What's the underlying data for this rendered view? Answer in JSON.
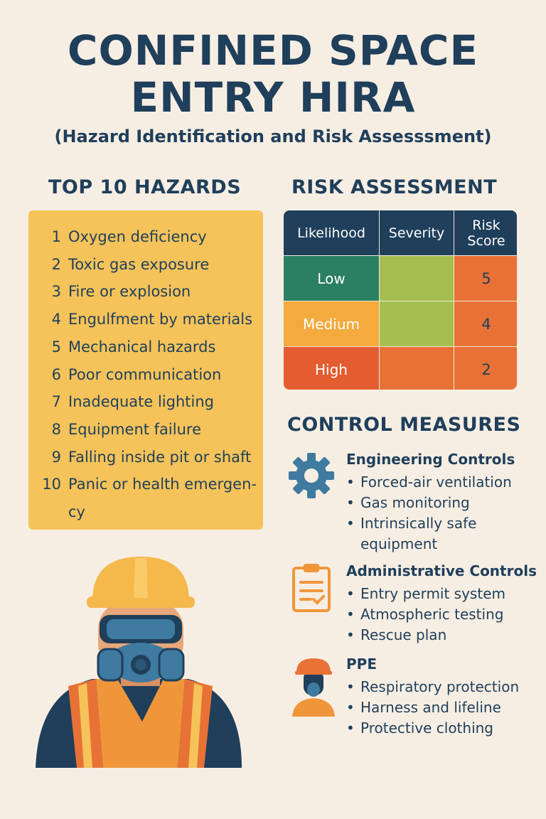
{
  "title_line1": "CONFINED SPACE",
  "title_line2": "ENTRY HIRA",
  "subtitle": "(Hazard Identification and Risk Assesssment)",
  "hazards": {
    "heading": "TOP 10 HAZARDS",
    "items": [
      {
        "n": "1",
        "t": "Oxygen deficiency"
      },
      {
        "n": "2",
        "t": "Toxic gas exposure"
      },
      {
        "n": "3",
        "t": "Fire or explosion"
      },
      {
        "n": "4",
        "t": "Engulfment by materials"
      },
      {
        "n": "5",
        "t": "Mechanical hazards"
      },
      {
        "n": "6",
        "t": "Poor communication"
      },
      {
        "n": "7",
        "t": "Inadequate lighting"
      },
      {
        "n": "8",
        "t": "Equipment failure"
      },
      {
        "n": "9",
        "t": "Falling inside pit or shaft"
      },
      {
        "n": "10",
        "t": "Panic or health emergen-cy"
      }
    ]
  },
  "risk": {
    "heading": "RISK ASSESSMENT",
    "headers": [
      "Likelihood",
      "Severity",
      "Risk Score"
    ],
    "rows": [
      {
        "likelihood": "Low",
        "score": "5",
        "colors": [
          "#2b7f62",
          "#a4bf4f",
          "#e87236"
        ]
      },
      {
        "likelihood": "Medium",
        "score": "4",
        "colors": [
          "#f4aa3c",
          "#a4bf4f",
          "#e87236"
        ]
      },
      {
        "likelihood": "High",
        "score": "2",
        "colors": [
          "#e35d30",
          "#e87236",
          "#e87236"
        ]
      }
    ]
  },
  "controls": {
    "heading": "CONTROL MEASURES",
    "sections": [
      {
        "title": "Engineering Controls",
        "icon": "gear-icon",
        "items": [
          "Forced-air ventilation",
          "Gas monitoring",
          "Intrinsically safe equipment"
        ]
      },
      {
        "title": "Administrative Controls",
        "icon": "clipboard-icon",
        "items": [
          "Entry permit system",
          "Atmospheric testing",
          "Rescue plan"
        ]
      },
      {
        "title": "PPE",
        "icon": "worker-icon",
        "items": [
          "Respiratory protection",
          "Harness and lifeline",
          "Protective clothing"
        ]
      }
    ]
  },
  "colors": {
    "navy": "#1f3f5b",
    "yellow": "#f5c35a",
    "orange": "#e87236",
    "background": "#f7eee3"
  }
}
